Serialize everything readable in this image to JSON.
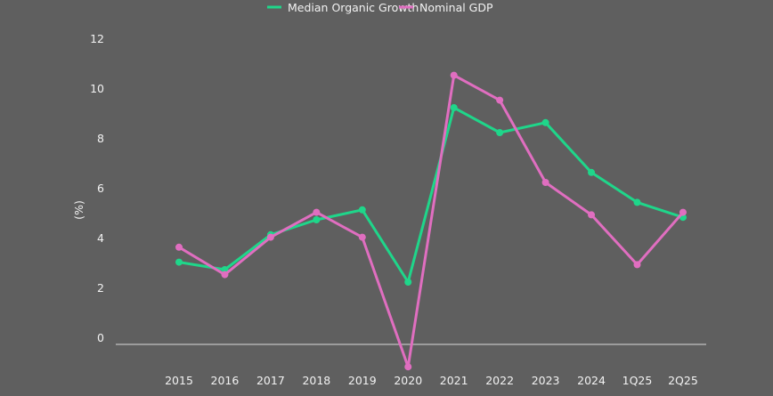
{
  "chart_data": {
    "type": "line",
    "ylabel": "(%)",
    "xlabel": "",
    "ylim": [
      0,
      12
    ],
    "yticks": [
      0,
      2,
      4,
      6,
      8,
      10,
      12
    ],
    "grid": false,
    "legend_position": "top",
    "categories": [
      "2015",
      "2016",
      "2017",
      "2018",
      "2019",
      "2020",
      "2021",
      "2022",
      "2023",
      "2024",
      "1Q25",
      "2Q25"
    ],
    "series": [
      {
        "name": "Median Organic Growth",
        "color": "#1fd68a",
        "values": [
          3.3,
          3.0,
          4.4,
          5.0,
          5.4,
          2.5,
          9.5,
          8.5,
          8.9,
          6.9,
          5.7,
          5.1
        ]
      },
      {
        "name": "Nominal GDP",
        "color": "#e06ec0",
        "values": [
          3.9,
          2.8,
          4.3,
          5.3,
          4.3,
          -0.9,
          10.8,
          9.8,
          6.5,
          5.2,
          3.2,
          5.3
        ]
      }
    ]
  }
}
